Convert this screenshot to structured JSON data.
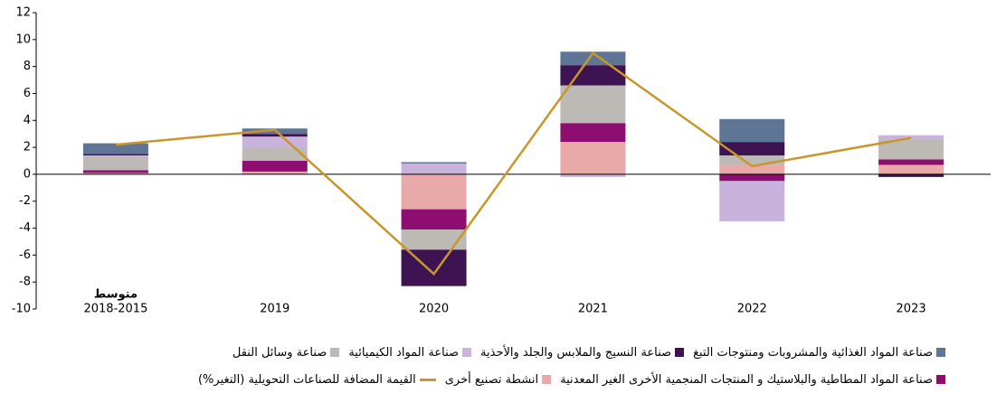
{
  "chart_data": {
    "type": "stacked_bar_line",
    "categories": [
      "2018-2015",
      "2019",
      "2020",
      "2021",
      "2022",
      "2023"
    ],
    "annotations": [
      {
        "text": "متوسط",
        "category": 0
      }
    ],
    "series": [
      {
        "name": "انشطة تصنيع أخرى",
        "color": "#eaa9a9",
        "values": [
          0.1,
          0.2,
          -2.6,
          2.4,
          0.7,
          0.7
        ]
      },
      {
        "name": "صناعة المواد المطاطية والبلاستيك و المنتجات المنجمية الأخرى الغير المعدنية",
        "color": "#8e0d70",
        "values": [
          0.2,
          0.8,
          -1.5,
          1.4,
          -0.5,
          0.4
        ]
      },
      {
        "name": "صناعة وسائل النقل",
        "color": "#bdb9b5",
        "values": [
          1.0,
          1.0,
          -1.5,
          2.8,
          0.7,
          1.5
        ]
      },
      {
        "name": "صناعة المواد الكيميائية",
        "color": "#c8b3dc",
        "values": [
          0.1,
          0.8,
          0.8,
          -0.2,
          -3.0,
          0.3
        ]
      },
      {
        "name": "صناعة النسيج والملابس والجلد والأحذية",
        "color": "#3d1352",
        "values": [
          0.1,
          0.2,
          -2.7,
          1.5,
          1.0,
          -0.2
        ]
      },
      {
        "name": "صناعة المواد الغذائية والمشروبات ومنتوجات التبغ",
        "color": "#5f7595",
        "values": [
          0.8,
          0.4,
          0.1,
          1.0,
          1.7,
          0.0
        ]
      }
    ],
    "line": {
      "name": "القيمة المضافة للصناعات التحويلية (التغير%)",
      "color": "#c8962c",
      "values": [
        2.2,
        3.3,
        -7.4,
        9.0,
        0.6,
        2.7
      ]
    },
    "legend_rows": [
      [
        5,
        4,
        3,
        2
      ],
      [
        1,
        0,
        "line"
      ]
    ],
    "ylim": [
      -10,
      12
    ],
    "yticks": [
      -10,
      -8,
      -6,
      -4,
      -2,
      0,
      2,
      4,
      6,
      8,
      10,
      12
    ]
  }
}
